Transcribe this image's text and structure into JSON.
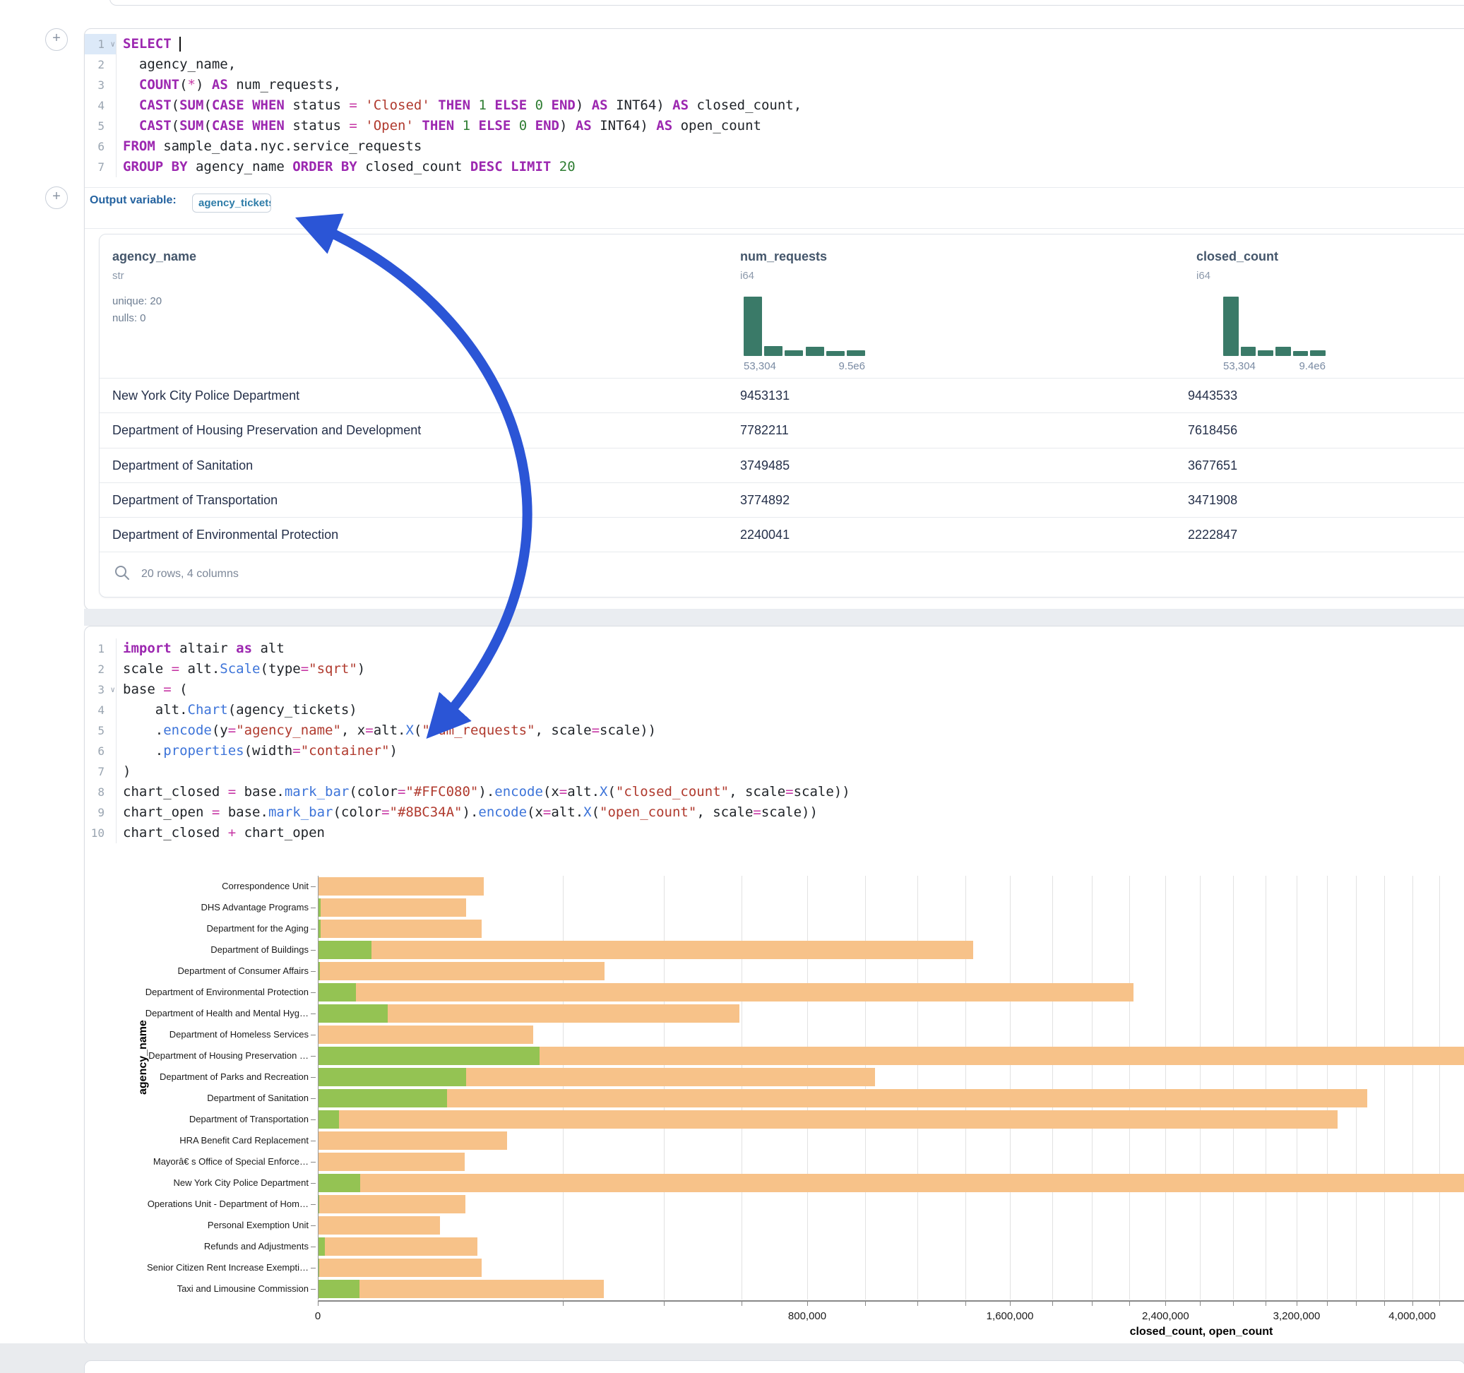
{
  "output_variable": {
    "label": "Output variable:",
    "value": "agency_tickets"
  },
  "sql_cell": {
    "add_button": "+",
    "active_line": 1,
    "collapse_lines": [
      1
    ],
    "lines": [
      {
        "n": "1",
        "tokens": [
          [
            "kw",
            "SELECT"
          ],
          [
            "pl",
            " "
          ],
          [
            "cursor",
            ""
          ]
        ]
      },
      {
        "n": "2",
        "tokens": [
          [
            "pl",
            "  agency_name,"
          ]
        ]
      },
      {
        "n": "3",
        "tokens": [
          [
            "pl",
            "  "
          ],
          [
            "kw",
            "COUNT"
          ],
          [
            "pl",
            "("
          ],
          [
            "op",
            "*"
          ],
          [
            "pl",
            ") "
          ],
          [
            "kw",
            "AS"
          ],
          [
            "pl",
            " num_requests,"
          ]
        ]
      },
      {
        "n": "4",
        "tokens": [
          [
            "pl",
            "  "
          ],
          [
            "kw",
            "CAST"
          ],
          [
            "pl",
            "("
          ],
          [
            "kw",
            "SUM"
          ],
          [
            "pl",
            "("
          ],
          [
            "kw",
            "CASE"
          ],
          [
            "pl",
            " "
          ],
          [
            "kw",
            "WHEN"
          ],
          [
            "pl",
            " status "
          ],
          [
            "op",
            "="
          ],
          [
            "pl",
            " "
          ],
          [
            "str",
            "'Closed'"
          ],
          [
            "pl",
            " "
          ],
          [
            "kw",
            "THEN"
          ],
          [
            "pl",
            " "
          ],
          [
            "num",
            "1"
          ],
          [
            "pl",
            " "
          ],
          [
            "kw",
            "ELSE"
          ],
          [
            "pl",
            " "
          ],
          [
            "num",
            "0"
          ],
          [
            "pl",
            " "
          ],
          [
            "kw",
            "END"
          ],
          [
            "pl",
            ") "
          ],
          [
            "kw",
            "AS"
          ],
          [
            "pl",
            " INT64) "
          ],
          [
            "kw",
            "AS"
          ],
          [
            "pl",
            " closed_count,"
          ]
        ]
      },
      {
        "n": "5",
        "tokens": [
          [
            "pl",
            "  "
          ],
          [
            "kw",
            "CAST"
          ],
          [
            "pl",
            "("
          ],
          [
            "kw",
            "SUM"
          ],
          [
            "pl",
            "("
          ],
          [
            "kw",
            "CASE"
          ],
          [
            "pl",
            " "
          ],
          [
            "kw",
            "WHEN"
          ],
          [
            "pl",
            " status "
          ],
          [
            "op",
            "="
          ],
          [
            "pl",
            " "
          ],
          [
            "str",
            "'Open'"
          ],
          [
            "pl",
            " "
          ],
          [
            "kw",
            "THEN"
          ],
          [
            "pl",
            " "
          ],
          [
            "num",
            "1"
          ],
          [
            "pl",
            " "
          ],
          [
            "kw",
            "ELSE"
          ],
          [
            "pl",
            " "
          ],
          [
            "num",
            "0"
          ],
          [
            "pl",
            " "
          ],
          [
            "kw",
            "END"
          ],
          [
            "pl",
            ") "
          ],
          [
            "kw",
            "AS"
          ],
          [
            "pl",
            " INT64) "
          ],
          [
            "kw",
            "AS"
          ],
          [
            "pl",
            " open_count"
          ]
        ]
      },
      {
        "n": "6",
        "tokens": [
          [
            "kw",
            "FROM"
          ],
          [
            "pl",
            " sample_data.nyc.service_requests"
          ]
        ]
      },
      {
        "n": "7",
        "tokens": [
          [
            "kw",
            "GROUP BY"
          ],
          [
            "pl",
            " agency_name "
          ],
          [
            "kw",
            "ORDER BY"
          ],
          [
            "pl",
            " closed_count "
          ],
          [
            "kw",
            "DESC"
          ],
          [
            "pl",
            " "
          ],
          [
            "kw",
            "LIMIT"
          ],
          [
            "pl",
            " "
          ],
          [
            "num",
            "20"
          ]
        ]
      }
    ]
  },
  "table": {
    "columns": [
      {
        "name": "agency_name",
        "type": "str",
        "stats": [
          "unique: 20",
          "nulls: 0"
        ]
      },
      {
        "name": "num_requests",
        "type": "i64",
        "hist": {
          "heights": [
            100,
            17,
            9,
            16,
            8,
            9
          ],
          "min_label": "53,304",
          "max_label": "9.5e6"
        }
      },
      {
        "name": "closed_count",
        "type": "i64",
        "hist": {
          "heights": [
            100,
            16,
            9,
            16,
            8,
            9
          ],
          "min_label": "53,304",
          "max_label": "9.4e6"
        }
      }
    ],
    "rows": [
      {
        "agency_name": "New York City Police Department",
        "num_requests": "9453131",
        "closed_count": "9443533"
      },
      {
        "agency_name": "Department of Housing Preservation and Development",
        "num_requests": "7782211",
        "closed_count": "7618456"
      },
      {
        "agency_name": "Department of Sanitation",
        "num_requests": "3749485",
        "closed_count": "3677651"
      },
      {
        "agency_name": "Department of Transportation",
        "num_requests": "3774892",
        "closed_count": "3471908"
      },
      {
        "agency_name": "Department of Environmental Protection",
        "num_requests": "2240041",
        "closed_count": "2222847"
      }
    ],
    "footer": "20 rows, 4 columns"
  },
  "python_cell": {
    "collapse_lines": [
      3
    ],
    "lines": [
      {
        "n": "1",
        "tokens": [
          [
            "kw",
            "import"
          ],
          [
            "pl",
            " altair "
          ],
          [
            "kw",
            "as"
          ],
          [
            "pl",
            " alt"
          ]
        ]
      },
      {
        "n": "2",
        "tokens": [
          [
            "pl",
            "scale "
          ],
          [
            "op",
            "="
          ],
          [
            "pl",
            " alt."
          ],
          [
            "fn",
            "Scale"
          ],
          [
            "pl",
            "(type"
          ],
          [
            "op",
            "="
          ],
          [
            "str",
            "\"sqrt\""
          ],
          [
            "pl",
            ")"
          ]
        ]
      },
      {
        "n": "3",
        "tokens": [
          [
            "pl",
            "base "
          ],
          [
            "op",
            "="
          ],
          [
            "pl",
            " ("
          ]
        ]
      },
      {
        "n": "4",
        "tokens": [
          [
            "pl",
            "    alt."
          ],
          [
            "fn",
            "Chart"
          ],
          [
            "pl",
            "(agency_tickets)"
          ]
        ]
      },
      {
        "n": "5",
        "tokens": [
          [
            "pl",
            "    ."
          ],
          [
            "fn",
            "encode"
          ],
          [
            "pl",
            "(y"
          ],
          [
            "op",
            "="
          ],
          [
            "str",
            "\"agency_name\""
          ],
          [
            "pl",
            ", x"
          ],
          [
            "op",
            "="
          ],
          [
            "pl",
            "alt."
          ],
          [
            "fn",
            "X"
          ],
          [
            "pl",
            "("
          ],
          [
            "str",
            "\"num_requests\""
          ],
          [
            "pl",
            ", scale"
          ],
          [
            "op",
            "="
          ],
          [
            "pl",
            "scale))"
          ]
        ]
      },
      {
        "n": "6",
        "tokens": [
          [
            "pl",
            "    ."
          ],
          [
            "fn",
            "properties"
          ],
          [
            "pl",
            "(width"
          ],
          [
            "op",
            "="
          ],
          [
            "str",
            "\"container\""
          ],
          [
            "pl",
            ")"
          ]
        ]
      },
      {
        "n": "7",
        "tokens": [
          [
            "pl",
            ")"
          ]
        ]
      },
      {
        "n": "8",
        "tokens": [
          [
            "pl",
            "chart_closed "
          ],
          [
            "op",
            "="
          ],
          [
            "pl",
            " base."
          ],
          [
            "fn",
            "mark_bar"
          ],
          [
            "pl",
            "(color"
          ],
          [
            "op",
            "="
          ],
          [
            "str",
            "\"#FFC080\""
          ],
          [
            "pl",
            ")."
          ],
          [
            "fn",
            "encode"
          ],
          [
            "pl",
            "(x"
          ],
          [
            "op",
            "="
          ],
          [
            "pl",
            "alt."
          ],
          [
            "fn",
            "X"
          ],
          [
            "pl",
            "("
          ],
          [
            "str",
            "\"closed_count\""
          ],
          [
            "pl",
            ", scale"
          ],
          [
            "op",
            "="
          ],
          [
            "pl",
            "scale))"
          ]
        ]
      },
      {
        "n": "9",
        "tokens": [
          [
            "pl",
            "chart_open "
          ],
          [
            "op",
            "="
          ],
          [
            "pl",
            " base."
          ],
          [
            "fn",
            "mark_bar"
          ],
          [
            "pl",
            "(color"
          ],
          [
            "op",
            "="
          ],
          [
            "str",
            "\"#8BC34A\""
          ],
          [
            "pl",
            ")."
          ],
          [
            "fn",
            "encode"
          ],
          [
            "pl",
            "(x"
          ],
          [
            "op",
            "="
          ],
          [
            "pl",
            "alt."
          ],
          [
            "fn",
            "X"
          ],
          [
            "pl",
            "("
          ],
          [
            "str",
            "\"open_count\""
          ],
          [
            "pl",
            ", scale"
          ],
          [
            "op",
            "="
          ],
          [
            "pl",
            "scale))"
          ]
        ]
      },
      {
        "n": "10",
        "tokens": [
          [
            "pl",
            "chart_closed "
          ],
          [
            "op",
            "+"
          ],
          [
            "pl",
            " chart_open"
          ]
        ]
      }
    ]
  },
  "chart_data": {
    "type": "bar",
    "orientation": "horizontal",
    "x_scale": "sqrt",
    "grid": true,
    "xlabel": "closed_count, open_count",
    "ylabel": "agency_name",
    "x_domain": [
      0,
      9443533
    ],
    "grid_step": 200000,
    "x_ticks": [
      {
        "value": 0,
        "label": "0"
      },
      {
        "value": 800000,
        "label": "800,000"
      },
      {
        "value": 1600000,
        "label": "1,600,000"
      },
      {
        "value": 2400000,
        "label": "2,400,000"
      },
      {
        "value": 3200000,
        "label": "3,200,000"
      },
      {
        "value": 4000000,
        "label": "4,000,000"
      }
    ],
    "categories": [
      "Correspondence Unit",
      "DHS Advantage Programs",
      "Department for the Aging",
      "Department of Buildings",
      "Department of Consumer Affairs",
      "Department of Environmental Protection",
      "Department of Health and Mental Hyg…",
      "Department of Homeless Services",
      "Department of Housing Preservation …",
      "Department of Parks and Recreation",
      "Department of Sanitation",
      "Department of Transportation",
      "HRA Benefit Card Replacement",
      "Mayorâ€ s Office of Special Enforce…",
      "New York City Police Department",
      "Operations Unit - Department of Hom…",
      "Personal Exemption Unit",
      "Refunds and Adjustments",
      "Senior Citizen Rent Increase Exempti…",
      "Taxi and Limousine Commission"
    ],
    "series": [
      {
        "name": "closed_count",
        "color": "#F7C289",
        "code_color": "#FFC080",
        "values": [
          92000,
          73500,
          90000,
          1434000,
          274000,
          2222847,
          593000,
          155000,
          7618456,
          1038000,
          3677651,
          3471908,
          119500,
          72000,
          9443533,
          72900,
          49900,
          85000,
          89800,
          273600
        ]
      },
      {
        "name": "open_count",
        "color": "#94C353",
        "code_color": "#8BC34A",
        "values": [
          0,
          30,
          30,
          9500,
          15,
          4900,
          16300,
          0,
          164000,
          73400,
          55600,
          1500,
          0,
          0,
          6000,
          10,
          0,
          170,
          10,
          5800
        ]
      }
    ]
  },
  "colors": {
    "arrow_blue": "#2B55D6",
    "hist_bar": "#3A7A68",
    "bar_closed": "#F7C289",
    "bar_open": "#94C353"
  }
}
